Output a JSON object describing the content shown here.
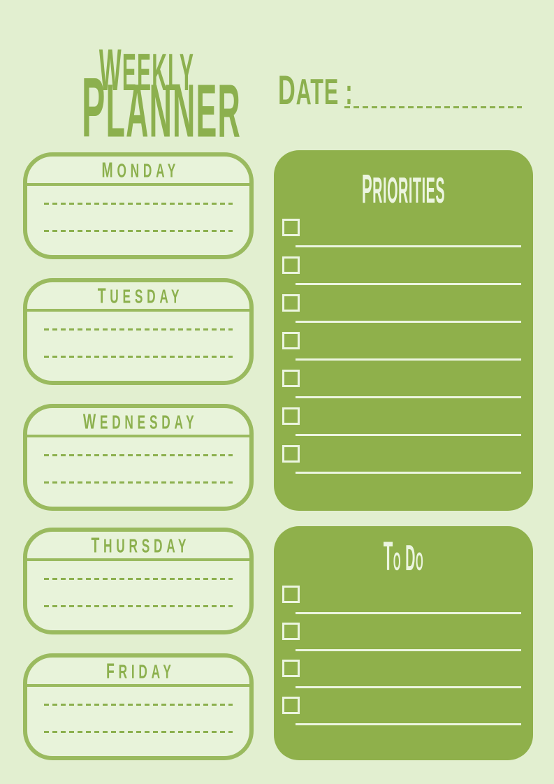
{
  "colors": {
    "page_bg": "#e2efd0",
    "day_bg": "#e8f3da",
    "border_green": "#9aba5f",
    "text_green": "#8cb04e",
    "panel_green": "#8fb04b",
    "cream": "#ecf5e0"
  },
  "header": {
    "title_line1": "WEEKLY",
    "title_line2": "PLANNER",
    "date_label": "DATE :",
    "date_value": ""
  },
  "days": [
    {
      "label": "MONDAY",
      "note_lines": [
        "",
        ""
      ]
    },
    {
      "label": "TUESDAY",
      "note_lines": [
        "",
        ""
      ]
    },
    {
      "label": "WEDNESDAY",
      "note_lines": [
        "",
        ""
      ]
    },
    {
      "label": "THURSDAY",
      "note_lines": [
        "",
        ""
      ]
    },
    {
      "label": "FRIDAY",
      "note_lines": [
        "",
        ""
      ]
    }
  ],
  "priorities": {
    "title": "PRIORITIES",
    "items": [
      "",
      "",
      "",
      "",
      "",
      "",
      ""
    ],
    "checked": [
      false,
      false,
      false,
      false,
      false,
      false,
      false
    ]
  },
  "todo": {
    "title": "To Do",
    "items": [
      "",
      "",
      "",
      ""
    ],
    "checked": [
      false,
      false,
      false,
      false
    ]
  }
}
